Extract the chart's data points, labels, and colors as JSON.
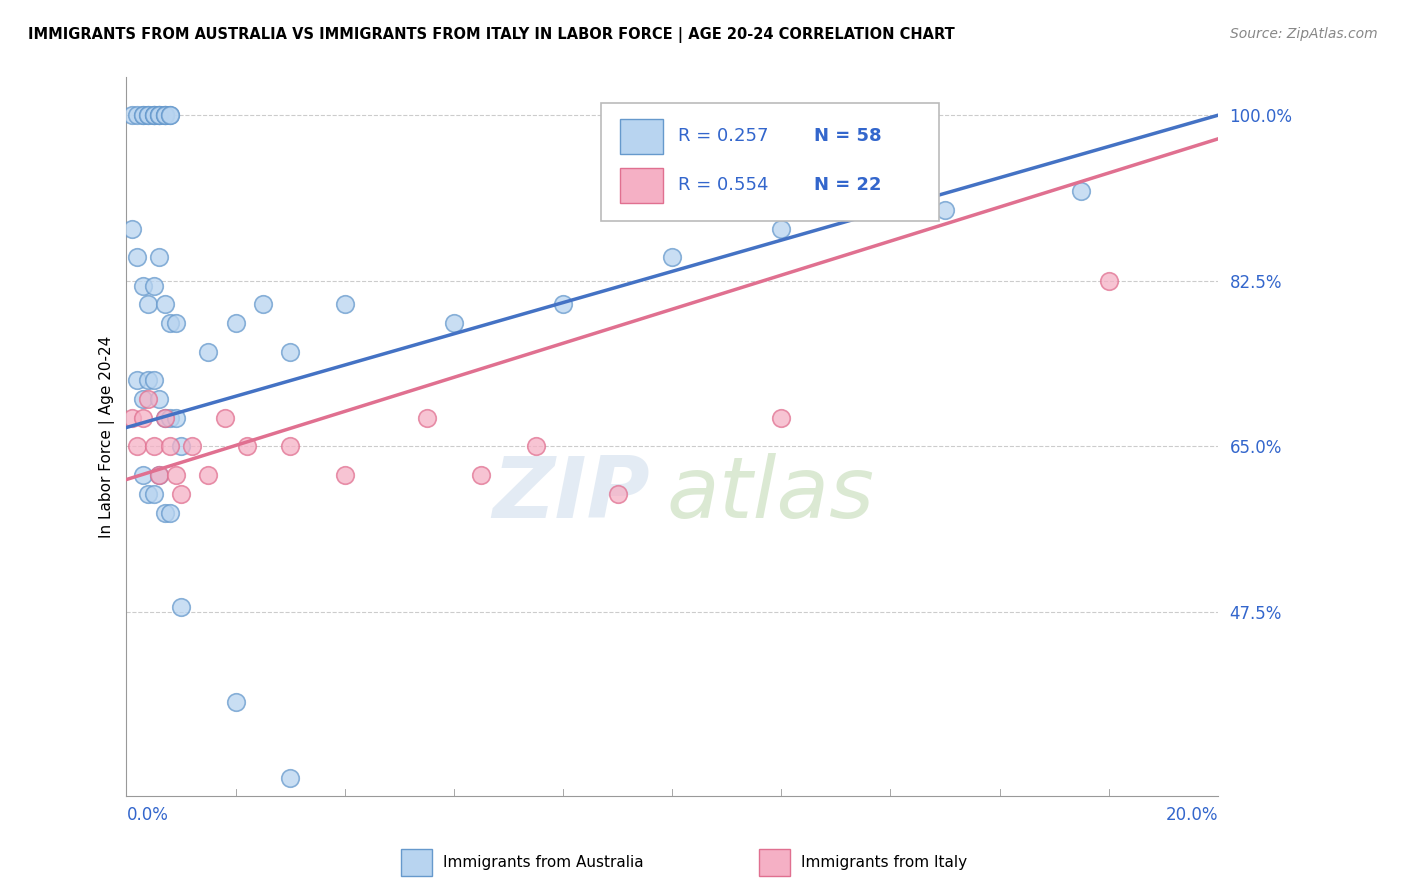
{
  "title": "IMMIGRANTS FROM AUSTRALIA VS IMMIGRANTS FROM ITALY IN LABOR FORCE | AGE 20-24 CORRELATION CHART",
  "source": "Source: ZipAtlas.com",
  "ylabel": "In Labor Force | Age 20-24",
  "xlim": [
    0.0,
    0.2
  ],
  "ylim": [
    0.28,
    1.04
  ],
  "yticks": [
    0.475,
    0.65,
    0.825,
    1.0
  ],
  "ytick_labels": [
    "47.5%",
    "65.0%",
    "82.5%",
    "100.0%"
  ],
  "australia_color": "#b8d4f0",
  "australia_edge": "#6699cc",
  "italy_color": "#f5b0c5",
  "italy_edge": "#e07090",
  "trend_australia_color": "#4472c4",
  "trend_italy_color": "#e07090",
  "legend_R_australia": "0.257",
  "legend_N_australia": "58",
  "legend_R_italy": "0.554",
  "legend_N_italy": "22",
  "legend_label_australia": "Immigrants from Australia",
  "legend_label_italy": "Immigrants from Italy",
  "aus_x": [
    0.001,
    0.001,
    0.001,
    0.002,
    0.002,
    0.002,
    0.003,
    0.003,
    0.003,
    0.004,
    0.004,
    0.004,
    0.005,
    0.005,
    0.005,
    0.005,
    0.006,
    0.006,
    0.006,
    0.006,
    0.006,
    0.007,
    0.007,
    0.007,
    0.007,
    0.008,
    0.008,
    0.008,
    0.008,
    0.009,
    0.009,
    0.009,
    0.01,
    0.01,
    0.01,
    0.011,
    0.011,
    0.012,
    0.012,
    0.013,
    0.014,
    0.015,
    0.016,
    0.018,
    0.02,
    0.022,
    0.025,
    0.028,
    0.03,
    0.035,
    0.04,
    0.05,
    0.06,
    0.08,
    0.1,
    0.12,
    0.15,
    0.175
  ],
  "aus_y": [
    1.0,
    0.98,
    0.92,
    1.0,
    1.0,
    0.95,
    1.0,
    1.0,
    0.98,
    1.0,
    1.0,
    0.97,
    1.0,
    1.0,
    0.95,
    0.9,
    1.0,
    1.0,
    0.88,
    0.85,
    0.82,
    0.92,
    0.88,
    0.82,
    0.78,
    0.85,
    0.8,
    0.75,
    0.72,
    0.8,
    0.75,
    0.7,
    0.78,
    0.72,
    0.68,
    0.72,
    0.68,
    0.7,
    0.65,
    0.68,
    0.65,
    0.62,
    0.65,
    0.68,
    0.72,
    0.75,
    0.78,
    0.72,
    0.7,
    0.65,
    0.72,
    0.75,
    0.78,
    0.8,
    0.82,
    0.85,
    0.88,
    0.9
  ],
  "ita_x": [
    0.001,
    0.002,
    0.003,
    0.004,
    0.005,
    0.006,
    0.007,
    0.008,
    0.009,
    0.01,
    0.012,
    0.015,
    0.018,
    0.022,
    0.028,
    0.035,
    0.042,
    0.052,
    0.062,
    0.072,
    0.085,
    0.18
  ],
  "ita_y": [
    0.7,
    0.68,
    0.72,
    0.7,
    0.68,
    0.65,
    0.7,
    0.68,
    0.65,
    0.62,
    0.68,
    0.65,
    0.62,
    0.68,
    0.65,
    0.68,
    0.62,
    0.65,
    0.68,
    0.65,
    0.6,
    0.825
  ]
}
